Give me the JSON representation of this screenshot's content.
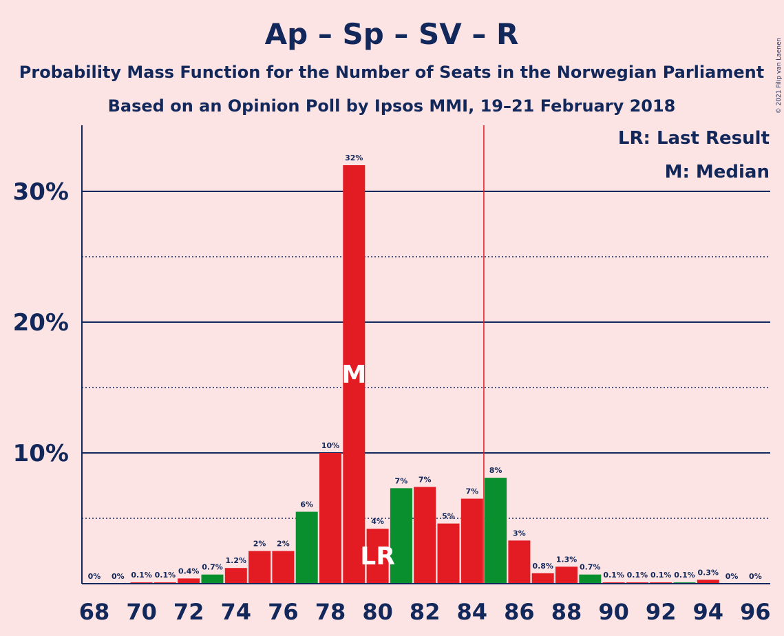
{
  "chart_data": {
    "type": "bar",
    "title": "Ap – Sp – SV – R",
    "subtitle_1": "Probability Mass Function for the Number of Seats in the Norwegian Parliament",
    "subtitle_2": "Based on an Opinion Poll by Ipsos MMI, 19–21 February 2018",
    "copyright": "© 2021 Filip van Laenen",
    "legend": {
      "last_result": "LR: Last Result",
      "median": "M: Median",
      "placement": "top-right"
    },
    "x_ticks": [
      "68",
      "70",
      "72",
      "74",
      "76",
      "78",
      "80",
      "82",
      "84",
      "86",
      "88",
      "90",
      "92",
      "94",
      "96"
    ],
    "y_ticks": [
      {
        "value": 10,
        "label": "10%"
      },
      {
        "value": 20,
        "label": "20%"
      },
      {
        "value": 30,
        "label": "30%"
      }
    ],
    "ylim": [
      0,
      35
    ],
    "xlim": [
      67.5,
      96.5
    ],
    "majority_line_x": 84.5,
    "median_seat": 79,
    "median_label": "M",
    "last_result_seat": 80,
    "last_result_label": "LR",
    "colors": {
      "red": "#e31b23",
      "green": "#0a8f2f",
      "grid": "#12275a",
      "majority": "#e31b23"
    },
    "bars": [
      {
        "seat": 68,
        "value": 0,
        "label": "0%",
        "color": "red"
      },
      {
        "seat": 69,
        "value": 0,
        "label": "0%",
        "color": "red"
      },
      {
        "seat": 70,
        "value": 0.1,
        "label": "0.1%",
        "color": "red"
      },
      {
        "seat": 71,
        "value": 0.1,
        "label": "0.1%",
        "color": "red"
      },
      {
        "seat": 72,
        "value": 0.4,
        "label": "0.4%",
        "color": "red"
      },
      {
        "seat": 73,
        "value": 0.7,
        "label": "0.7%",
        "color": "green"
      },
      {
        "seat": 74,
        "value": 1.2,
        "label": "1.2%",
        "color": "red"
      },
      {
        "seat": 75,
        "value": 2.5,
        "label": "2%",
        "color": "red"
      },
      {
        "seat": 76,
        "value": 2.5,
        "label": "2%",
        "color": "red"
      },
      {
        "seat": 77,
        "value": 5.5,
        "label": "6%",
        "color": "green"
      },
      {
        "seat": 78,
        "value": 10,
        "label": "10%",
        "color": "red"
      },
      {
        "seat": 79,
        "value": 32,
        "label": "32%",
        "color": "red"
      },
      {
        "seat": 80,
        "value": 4.2,
        "label": "4%",
        "color": "red"
      },
      {
        "seat": 81,
        "value": 7.3,
        "label": "7%",
        "color": "green"
      },
      {
        "seat": 82,
        "value": 7.4,
        "label": "7%",
        "color": "red"
      },
      {
        "seat": 83,
        "value": 4.6,
        "label": "5%",
        "color": "red"
      },
      {
        "seat": 84,
        "value": 6.5,
        "label": "7%",
        "color": "red"
      },
      {
        "seat": 85,
        "value": 8.1,
        "label": "8%",
        "color": "green"
      },
      {
        "seat": 86,
        "value": 3.3,
        "label": "3%",
        "color": "red"
      },
      {
        "seat": 87,
        "value": 0.8,
        "label": "0.8%",
        "color": "red"
      },
      {
        "seat": 88,
        "value": 1.3,
        "label": "1.3%",
        "color": "red"
      },
      {
        "seat": 89,
        "value": 0.7,
        "label": "0.7%",
        "color": "green"
      },
      {
        "seat": 90,
        "value": 0.1,
        "label": "0.1%",
        "color": "red"
      },
      {
        "seat": 91,
        "value": 0.1,
        "label": "0.1%",
        "color": "red"
      },
      {
        "seat": 92,
        "value": 0.1,
        "label": "0.1%",
        "color": "red"
      },
      {
        "seat": 93,
        "value": 0.1,
        "label": "0.1%",
        "color": "green"
      },
      {
        "seat": 94,
        "value": 0.3,
        "label": "0.3%",
        "color": "red"
      },
      {
        "seat": 95,
        "value": 0,
        "label": "0%",
        "color": "red"
      },
      {
        "seat": 96,
        "value": 0,
        "label": "0%",
        "color": "red"
      }
    ]
  }
}
